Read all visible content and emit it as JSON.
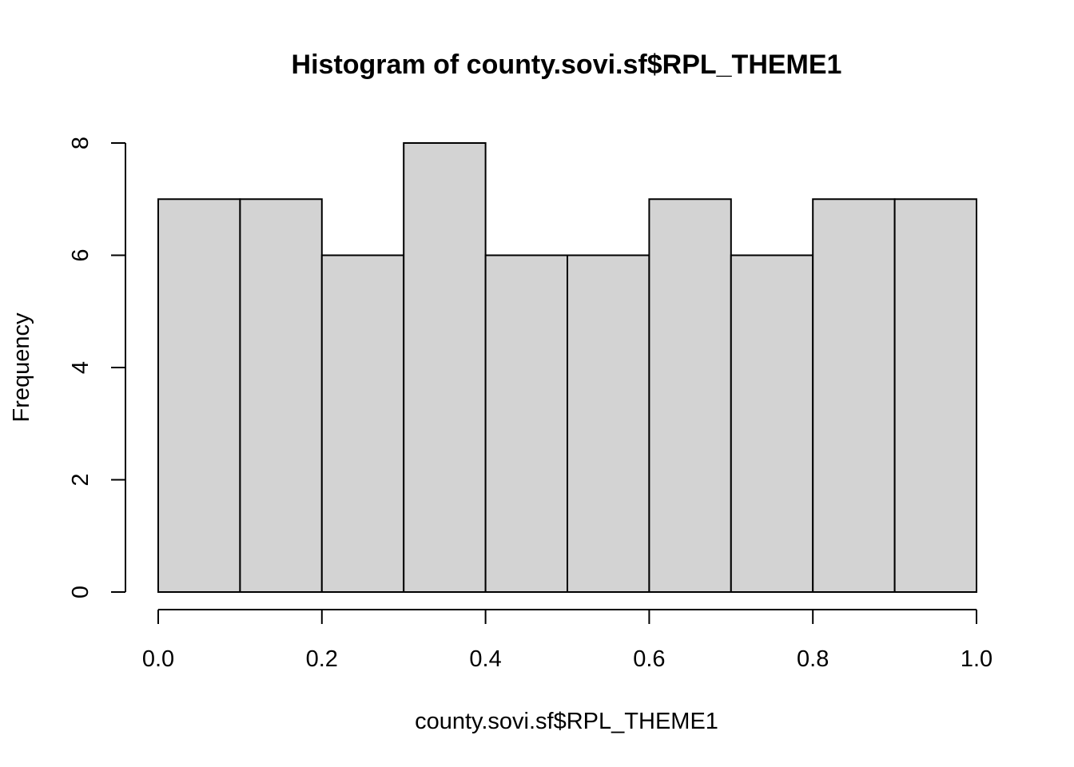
{
  "chart_data": {
    "type": "bar",
    "title": "Histogram of county.sovi.sf$RPL_THEME1",
    "xlabel": "county.sovi.sf$RPL_THEME1",
    "ylabel": "Frequency",
    "bins": [
      {
        "from": 0.0,
        "to": 0.1,
        "count": 7
      },
      {
        "from": 0.1,
        "to": 0.2,
        "count": 7
      },
      {
        "from": 0.2,
        "to": 0.3,
        "count": 6
      },
      {
        "from": 0.3,
        "to": 0.4,
        "count": 8
      },
      {
        "from": 0.4,
        "to": 0.5,
        "count": 6
      },
      {
        "from": 0.5,
        "to": 0.6,
        "count": 6
      },
      {
        "from": 0.6,
        "to": 0.7,
        "count": 7
      },
      {
        "from": 0.7,
        "to": 0.8,
        "count": 6
      },
      {
        "from": 0.8,
        "to": 0.9,
        "count": 7
      },
      {
        "from": 0.9,
        "to": 1.0,
        "count": 7
      }
    ],
    "xlim": [
      0.0,
      1.0
    ],
    "ylim": [
      0,
      8
    ],
    "xticks": [
      0.0,
      0.2,
      0.4,
      0.6,
      0.8,
      1.0
    ],
    "xtick_labels": [
      "0.0",
      "0.2",
      "0.4",
      "0.6",
      "0.8",
      "1.0"
    ],
    "yticks": [
      0,
      2,
      4,
      6,
      8
    ],
    "ytick_labels": [
      "0",
      "2",
      "4",
      "6",
      "8"
    ],
    "grid": false,
    "bar_color": "#d3d3d3",
    "border_color": "#000000"
  }
}
